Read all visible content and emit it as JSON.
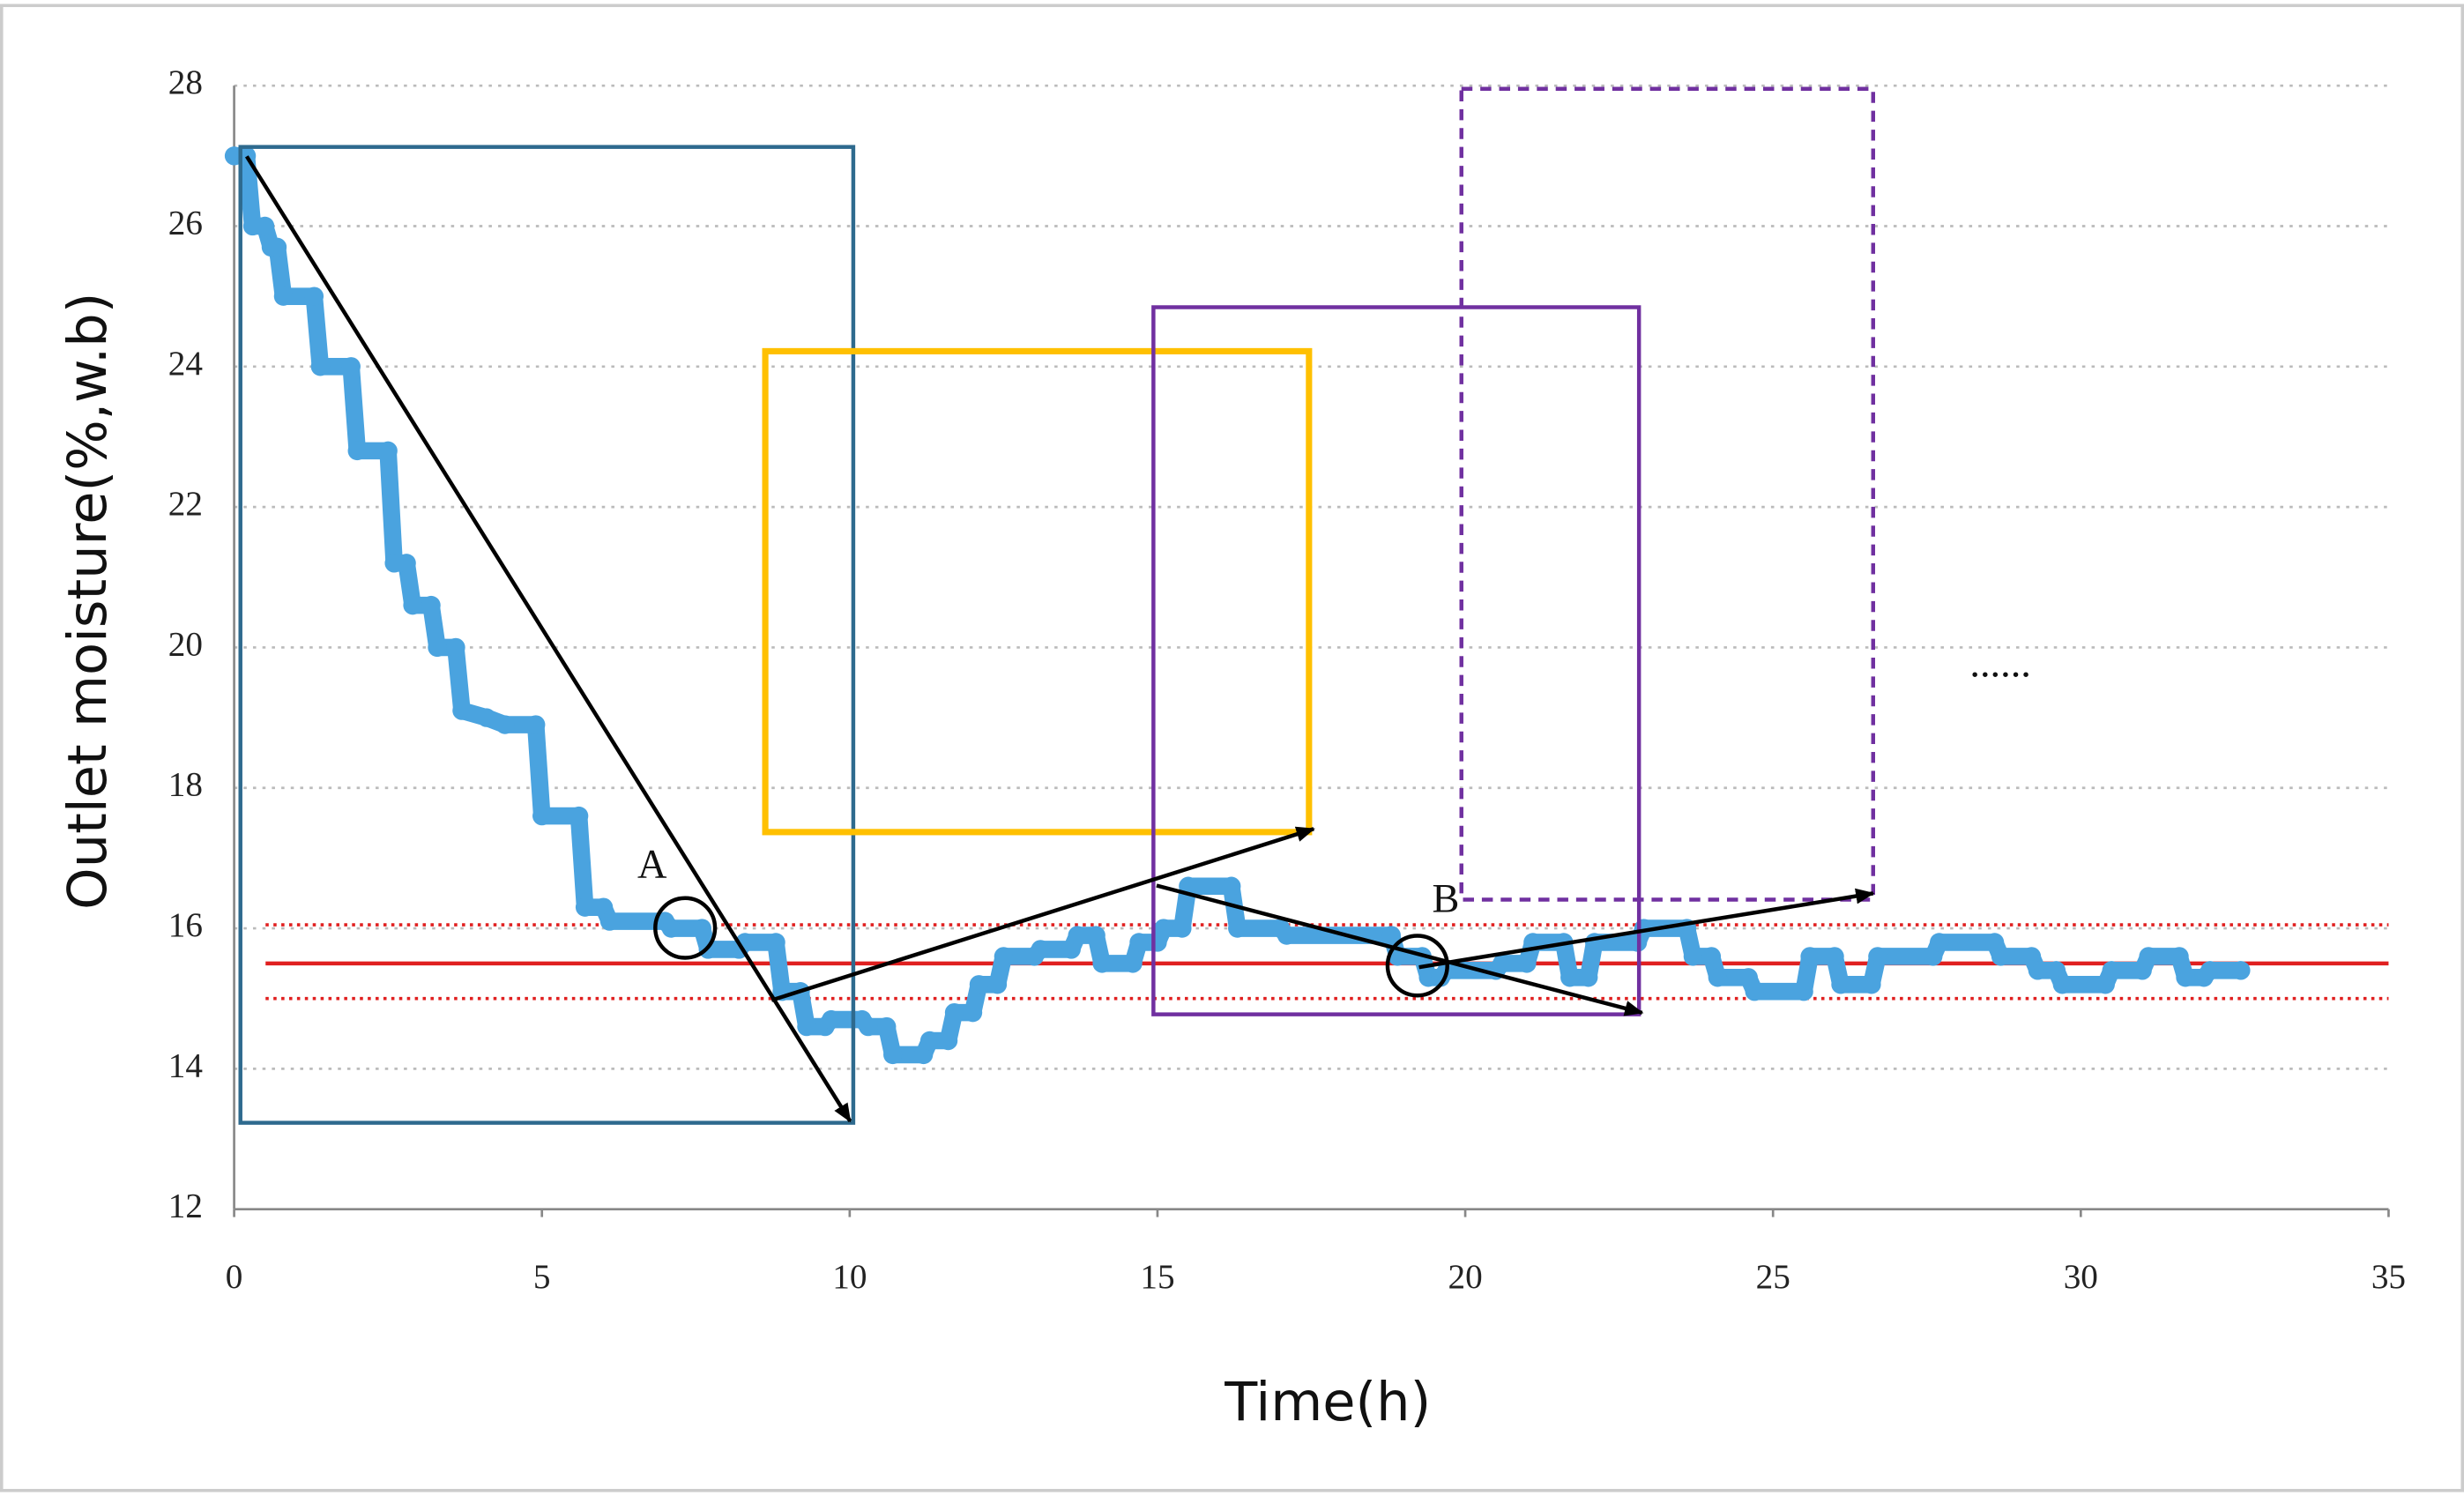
{
  "chart_data": {
    "type": "line",
    "x_label": "Time(h)",
    "y_label": "Outlet moisture(%,w.b)",
    "xlim": [
      0,
      35
    ],
    "xticks": [
      0,
      5,
      10,
      15,
      20,
      25,
      30,
      35
    ],
    "ylim": [
      12,
      28
    ],
    "yticks": [
      12,
      14,
      16,
      18,
      20,
      22,
      24,
      26,
      28
    ],
    "grid": true,
    "series": [
      {
        "color": "#4aa3df",
        "x": [
          0,
          0.2,
          0.3,
          0.5,
          0.6,
          0.7,
          0.8,
          1.3,
          1.4,
          1.9,
          2.0,
          2.5,
          2.6,
          2.8,
          2.9,
          3.2,
          3.3,
          3.6,
          3.7,
          4.1,
          4.4,
          4.9,
          5.0,
          5.6,
          5.7,
          6.0,
          6.1,
          7.0,
          7.1,
          7.6,
          7.7,
          8.2,
          8.3,
          8.8,
          8.9,
          9.2,
          9.3,
          9.6,
          9.7,
          10.2,
          10.3,
          10.6,
          10.7,
          11.2,
          11.3,
          11.6,
          11.7,
          12.0,
          12.1,
          12.4,
          12.5,
          13.0,
          13.1,
          13.6,
          13.7,
          14.0,
          14.1,
          14.6,
          14.7,
          15.0,
          15.1,
          15.4,
          15.5,
          16.2,
          16.3,
          17.0,
          17.1,
          18.8,
          18.9,
          19.3,
          19.4,
          19.6,
          19.7,
          20.5,
          20.6,
          21.0,
          21.1,
          21.6,
          21.7,
          22.0,
          22.1,
          22.8,
          22.9,
          23.6,
          23.7,
          24.0,
          24.1,
          24.6,
          24.7,
          25.5,
          25.6,
          26.0,
          26.1,
          26.6,
          26.7,
          27.6,
          27.7,
          28.6,
          28.7,
          29.2,
          29.3,
          29.6,
          29.7,
          30.4,
          30.5,
          31.0,
          31.1,
          31.6,
          31.7,
          32.0,
          32.1,
          32.6
        ],
        "values": [
          27,
          27,
          26,
          26,
          25.7,
          25.7,
          25,
          25,
          24,
          24,
          22.8,
          22.8,
          21.2,
          21.2,
          20.6,
          20.6,
          20,
          20,
          19.1,
          19.0,
          18.9,
          18.9,
          17.6,
          17.6,
          16.3,
          16.3,
          16.1,
          16.1,
          16.0,
          16.0,
          15.7,
          15.7,
          15.8,
          15.8,
          15.1,
          15.1,
          14.6,
          14.6,
          14.7,
          14.7,
          14.6,
          14.6,
          14.2,
          14.2,
          14.4,
          14.4,
          14.8,
          14.8,
          15.2,
          15.2,
          15.6,
          15.6,
          15.7,
          15.7,
          15.9,
          15.9,
          15.5,
          15.5,
          15.8,
          15.8,
          16.0,
          16.0,
          16.6,
          16.6,
          16.0,
          16.0,
          15.9,
          15.9,
          15.6,
          15.6,
          15.3,
          15.3,
          15.4,
          15.4,
          15.5,
          15.5,
          15.8,
          15.8,
          15.3,
          15.3,
          15.8,
          15.8,
          16.0,
          16.0,
          15.6,
          15.6,
          15.3,
          15.3,
          15.1,
          15.1,
          15.6,
          15.6,
          15.2,
          15.2,
          15.6,
          15.6,
          15.8,
          15.8,
          15.6,
          15.6,
          15.4,
          15.4,
          15.2,
          15.2,
          15.4,
          15.4,
          15.6,
          15.6,
          15.3,
          15.3,
          15.4,
          15.4
        ]
      }
    ],
    "hlines": [
      {
        "value": 16.05,
        "style": "dotted"
      },
      {
        "value": 15.5,
        "style": "solid"
      },
      {
        "value": 15.0,
        "style": "dotted"
      }
    ],
    "hline_color": "#e02020",
    "annotations": [
      "A",
      "B",
      "......"
    ]
  }
}
